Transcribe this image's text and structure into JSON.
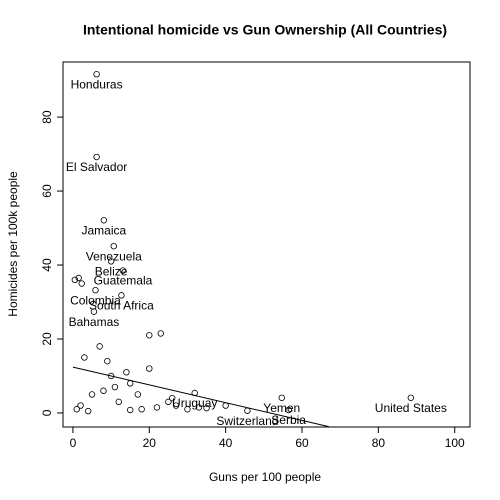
{
  "chart_data": {
    "type": "scatter",
    "title": "Intentional homicide vs Gun Ownership (All Countries)",
    "x_label": "Guns per 100 people",
    "y_label": "Homicides per 100k people",
    "xlim": [
      -2.6,
      104
    ],
    "ylim": [
      -3.8,
      94.9
    ],
    "xticks": [
      0,
      20,
      40,
      60,
      80,
      100
    ],
    "yticks": [
      0,
      20,
      40,
      60,
      80
    ],
    "x": [
      6.2,
      6.2,
      8.1,
      10.7,
      10,
      13.1,
      5.9,
      12.7,
      5.5,
      31.9,
      54.7,
      56.5,
      45.7,
      88.5,
      0.5,
      1.5,
      2.3,
      23,
      20,
      20,
      15,
      10,
      5,
      25,
      22,
      30,
      35,
      27,
      18,
      12,
      8,
      3,
      2,
      1,
      4,
      15,
      40,
      33,
      26,
      17,
      7,
      9,
      14,
      11
    ],
    "y": [
      91.6,
      69.2,
      52.1,
      45.1,
      41,
      38.5,
      33.2,
      31.8,
      27.4,
      5.4,
      4.1,
      0.8,
      0.6,
      4.1,
      36,
      36.5,
      35,
      21.5,
      21,
      12,
      8,
      10,
      5,
      3,
      1.5,
      1,
      1.3,
      2,
      1,
      3,
      6,
      15,
      2,
      1,
      0.5,
      0.8,
      2,
      1.5,
      4,
      5,
      18,
      14,
      11,
      7
    ],
    "labels": [
      "Honduras",
      "El Salvador",
      "Jamaica",
      "Venezuela",
      "Belize",
      "Guatemala",
      "Colombia",
      "South Africa",
      "Bahamas",
      "Uruguay",
      "Yemen",
      "Serbia",
      "Switzerland",
      "United States",
      null,
      null,
      null,
      null,
      null,
      null,
      null,
      null,
      null,
      null,
      null,
      null,
      null,
      null,
      null,
      null,
      null,
      null,
      null,
      null,
      null,
      null,
      null,
      null,
      null,
      null,
      null,
      null,
      null,
      null
    ],
    "trend_line": {
      "x": [
        0,
        67
      ],
      "y": [
        12.4,
        -3.7
      ]
    }
  }
}
